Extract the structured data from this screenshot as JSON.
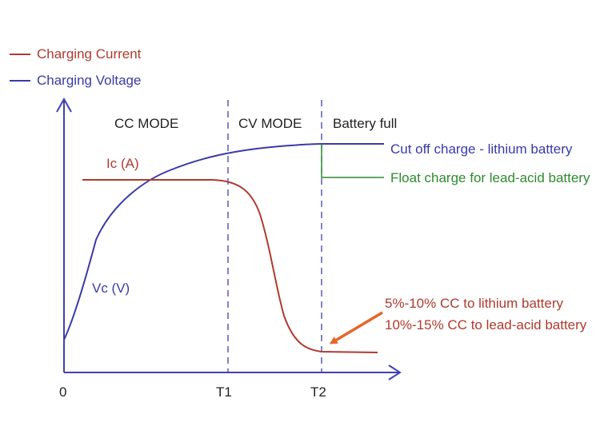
{
  "legend": {
    "current_label": "Charging Current",
    "voltage_label": "Charging Voltage"
  },
  "modes": {
    "cc": "CC MODE",
    "cv": "CV MODE",
    "full": "Battery full"
  },
  "curve_labels": {
    "current": "Ic (A)",
    "voltage": "Vc (V)"
  },
  "annotations": {
    "cutoff": "Cut off charge - lithium battery",
    "float": "Float charge for lead-acid battery",
    "lithium_cc": "5%-10% CC to lithium battery",
    "leadacid_cc": "10%-15% CC to lead-acid battery"
  },
  "axis": {
    "origin": "0",
    "t1": "T1",
    "t2": "T2"
  },
  "colors": {
    "current": "#b03a2e",
    "voltage": "#3a3aa8",
    "float": "#2e8b2e",
    "arrow": "#e8652a",
    "axis": "#4040b0",
    "text": "#222222"
  }
}
